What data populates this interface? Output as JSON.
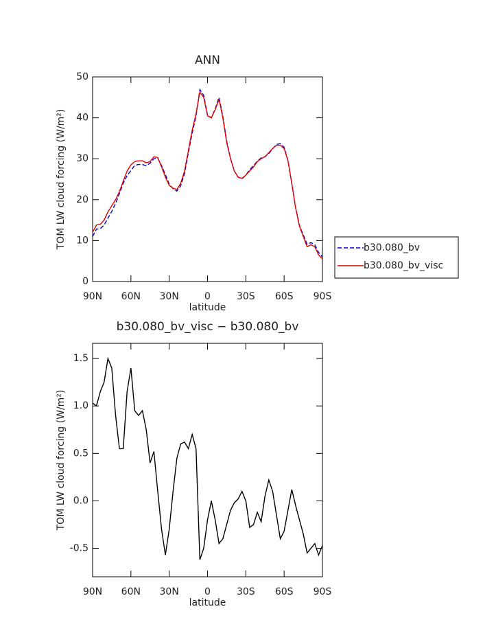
{
  "chart_data": [
    {
      "type": "line",
      "title": "ANN",
      "xlabel": "latitude",
      "ylabel": "TOM LW cloud forcing (W/m²)",
      "x": [
        90,
        87,
        84,
        81,
        78,
        75,
        72,
        69,
        66,
        63,
        60,
        57,
        54,
        51,
        48,
        45,
        42,
        39,
        36,
        33,
        30,
        27,
        24,
        21,
        18,
        15,
        12,
        9,
        6,
        3,
        0,
        -3,
        -6,
        -9,
        -12,
        -15,
        -18,
        -21,
        -24,
        -27,
        -30,
        -33,
        -36,
        -39,
        -42,
        -45,
        -48,
        -51,
        -54,
        -57,
        -60,
        -63,
        -66,
        -69,
        -72,
        -75,
        -78,
        -81,
        -84,
        -87,
        -90
      ],
      "xlim": [
        90,
        -90
      ],
      "xticks": [
        {
          "value": 90,
          "label": "90N"
        },
        {
          "value": 60,
          "label": "60N"
        },
        {
          "value": 30,
          "label": "30N"
        },
        0,
        {
          "value": -30,
          "label": "30S"
        },
        {
          "value": -60,
          "label": "60S"
        },
        {
          "value": -90,
          "label": "90S"
        }
      ],
      "ylim": [
        0,
        50
      ],
      "yticks": [
        0,
        10,
        20,
        30,
        40,
        50
      ],
      "legend": "right",
      "series": [
        {
          "name": "b30.080_bv",
          "color": "#0000cc",
          "linestyle": "dashed",
          "values": [
            11.0,
            12.8,
            12.9,
            13.8,
            15.5,
            17.1,
            19.1,
            21.5,
            24.0,
            25.9,
            27.1,
            28.4,
            28.6,
            28.6,
            28.3,
            28.9,
            30.0,
            30.2,
            28.3,
            26.1,
            23.8,
            22.7,
            22.1,
            23.4,
            26.4,
            31.5,
            36.3,
            40.5,
            46.9,
            45.5,
            40.7,
            40,
            42.2,
            45.0,
            40.4,
            34.3,
            30.1,
            27.0,
            25.5,
            25.1,
            26,
            27.3,
            28.3,
            29.4,
            30.2,
            30.5,
            31.3,
            32.4,
            33.5,
            33.7,
            32.8,
            29.6,
            23.9,
            18.1,
            13.7,
            11.4,
            9.1,
            9.5,
            9.0,
            7.1,
            6.0
          ]
        },
        {
          "name": "b30.080_bv_visc",
          "color": "#e00000",
          "linestyle": "solid",
          "values": [
            12,
            13.8,
            14,
            15,
            17,
            18.5,
            20,
            22,
            24.5,
            27,
            28.5,
            29.3,
            29.5,
            29.5,
            29,
            29.3,
            30.5,
            30.3,
            28,
            25.5,
            23.5,
            22.8,
            22.5,
            24,
            27,
            32,
            37,
            41,
            46.3,
            45,
            40.5,
            40,
            42,
            44.5,
            40,
            34,
            30,
            27,
            25.5,
            25.2,
            26,
            27,
            28,
            29.3,
            30,
            30.5,
            31.5,
            32.5,
            33.3,
            33.3,
            32.5,
            29.5,
            24,
            18,
            13.5,
            11,
            8.5,
            9,
            8.5,
            6.5,
            5.5
          ]
        }
      ]
    },
    {
      "type": "line",
      "title": "b30.080_bv_visc − b30.080_bv",
      "xlabel": "latitude",
      "ylabel": "TOM LW cloud forcing (W/m²)",
      "x": [
        90,
        87,
        84,
        81,
        78,
        75,
        72,
        69,
        66,
        63,
        60,
        57,
        54,
        51,
        48,
        45,
        42,
        39,
        36,
        33,
        30,
        27,
        24,
        21,
        18,
        15,
        12,
        9,
        6,
        3,
        0,
        -3,
        -6,
        -9,
        -12,
        -15,
        -18,
        -21,
        -24,
        -27,
        -30,
        -33,
        -36,
        -39,
        -42,
        -45,
        -48,
        -51,
        -54,
        -57,
        -60,
        -63,
        -66,
        -69,
        -72,
        -75,
        -78,
        -81,
        -84,
        -87,
        -90
      ],
      "xlim": [
        90,
        -90
      ],
      "xticks": [
        {
          "value": 90,
          "label": "90N"
        },
        {
          "value": 60,
          "label": "60N"
        },
        {
          "value": 30,
          "label": "30N"
        },
        0,
        {
          "value": -30,
          "label": "30S"
        },
        {
          "value": -60,
          "label": "60S"
        },
        {
          "value": -90,
          "label": "90S"
        }
      ],
      "ylim": [
        -0.8,
        1.66
      ],
      "yticks": [
        -0.5,
        {
          "value": 0,
          "label": "0.0"
        },
        0.5,
        {
          "value": 1,
          "label": "1.0"
        },
        1.5
      ],
      "color": "#000000",
      "values": [
        1.03,
        1.0,
        1.15,
        1.25,
        1.5,
        1.4,
        0.9,
        0.55,
        0.55,
        1.15,
        1.4,
        0.95,
        0.9,
        0.95,
        0.75,
        0.4,
        0.52,
        0.1,
        -0.3,
        -0.57,
        -0.3,
        0.1,
        0.45,
        0.6,
        0.62,
        0.55,
        0.7,
        0.55,
        -0.62,
        -0.5,
        -0.2,
        0.0,
        -0.2,
        -0.45,
        -0.4,
        -0.25,
        -0.1,
        -0.02,
        0.02,
        0.1,
        0.0,
        -0.28,
        -0.25,
        -0.12,
        -0.22,
        0.05,
        0.22,
        0.1,
        -0.15,
        -0.4,
        -0.32,
        -0.1,
        0.12,
        -0.05,
        -0.2,
        -0.35,
        -0.55,
        -0.5,
        -0.45,
        -0.57,
        -0.47
      ]
    }
  ]
}
